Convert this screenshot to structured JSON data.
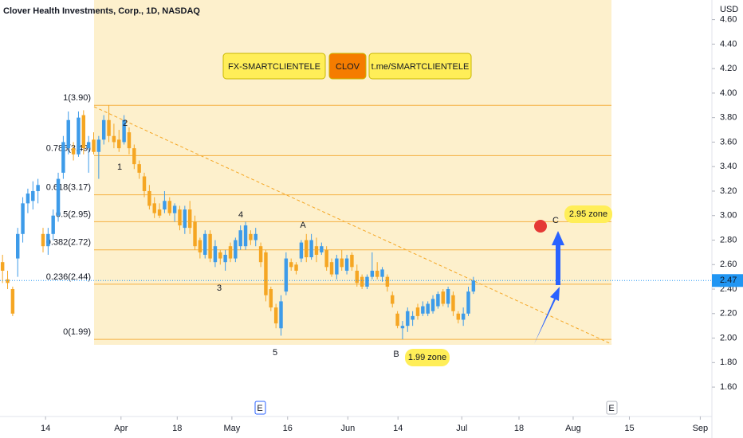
{
  "chart_data": {
    "type": "candlestick",
    "title": "Clover Health Investments, Corp., 1D, NASDAQ",
    "currency": "USD",
    "up_color": "#3d9be9",
    "down_color": "#f5a623",
    "candles": [
      [
        2.62,
        2.68,
        2.45,
        2.55
      ],
      [
        2.48,
        2.55,
        2.4,
        2.45
      ],
      [
        2.4,
        2.42,
        2.18,
        2.2
      ],
      [
        2.65,
        2.9,
        2.5,
        2.85
      ],
      [
        2.85,
        3.15,
        2.78,
        3.1
      ],
      [
        3.1,
        3.22,
        3.02,
        3.18
      ],
      [
        3.12,
        3.28,
        3.05,
        3.2
      ],
      [
        3.2,
        3.3,
        3.1,
        3.25
      ],
      [
        2.85,
        2.9,
        2.7,
        2.75
      ],
      [
        2.75,
        2.9,
        2.68,
        2.85
      ],
      [
        2.85,
        3.05,
        2.8,
        3.0
      ],
      [
        3.0,
        3.35,
        2.95,
        3.3
      ],
      [
        3.35,
        3.65,
        3.3,
        3.6
      ],
      [
        3.55,
        3.85,
        3.5,
        3.78
      ],
      [
        3.55,
        3.6,
        3.45,
        3.5
      ],
      [
        3.5,
        3.85,
        3.48,
        3.8
      ],
      [
        3.82,
        3.86,
        3.5,
        3.55
      ],
      [
        3.55,
        3.65,
        3.35,
        3.6
      ],
      [
        3.62,
        3.68,
        3.5,
        3.52
      ],
      [
        3.52,
        3.65,
        3.3,
        3.62
      ],
      [
        3.62,
        3.82,
        3.58,
        3.78
      ],
      [
        3.78,
        3.9,
        3.6,
        3.65
      ],
      [
        3.65,
        3.75,
        3.55,
        3.6
      ],
      [
        3.62,
        3.7,
        3.52,
        3.55
      ],
      [
        3.6,
        3.82,
        3.58,
        3.78
      ],
      [
        3.68,
        3.72,
        3.5,
        3.55
      ],
      [
        3.55,
        3.58,
        3.38,
        3.42
      ],
      [
        3.42,
        3.45,
        3.3,
        3.35
      ],
      [
        3.32,
        3.35,
        3.15,
        3.2
      ],
      [
        3.2,
        3.25,
        3.05,
        3.08
      ],
      [
        3.1,
        3.15,
        2.98,
        3.02
      ],
      [
        3.05,
        3.1,
        2.98,
        3.0
      ],
      [
        3.05,
        3.2,
        3.02,
        3.12
      ],
      [
        3.12,
        3.15,
        3.0,
        3.02
      ],
      [
        3.02,
        3.1,
        2.95,
        3.08
      ],
      [
        3.05,
        3.08,
        2.88,
        2.92
      ],
      [
        2.9,
        3.08,
        2.85,
        3.05
      ],
      [
        3.05,
        3.12,
        2.85,
        2.9
      ],
      [
        2.95,
        3.0,
        2.72,
        2.75
      ],
      [
        2.8,
        2.82,
        2.65,
        2.7
      ],
      [
        2.68,
        2.88,
        2.65,
        2.85
      ],
      [
        2.85,
        2.88,
        2.62,
        2.65
      ],
      [
        2.62,
        2.8,
        2.58,
        2.75
      ],
      [
        2.7,
        2.72,
        2.6,
        2.65
      ],
      [
        2.62,
        2.72,
        2.55,
        2.68
      ],
      [
        2.75,
        2.78,
        2.62,
        2.65
      ],
      [
        2.65,
        2.82,
        2.62,
        2.8
      ],
      [
        2.75,
        2.92,
        2.72,
        2.88
      ],
      [
        2.75,
        2.95,
        2.72,
        2.92
      ],
      [
        2.85,
        2.88,
        2.76,
        2.8
      ],
      [
        2.8,
        2.9,
        2.75,
        2.85
      ],
      [
        2.75,
        2.78,
        2.58,
        2.62
      ],
      [
        2.7,
        2.72,
        2.3,
        2.35
      ],
      [
        2.4,
        2.42,
        2.22,
        2.25
      ],
      [
        2.25,
        2.28,
        2.08,
        2.12
      ],
      [
        2.08,
        2.35,
        2.02,
        2.3
      ],
      [
        2.38,
        2.7,
        2.35,
        2.65
      ],
      [
        2.62,
        2.65,
        2.55,
        2.58
      ],
      [
        2.6,
        2.62,
        2.52,
        2.55
      ],
      [
        2.65,
        2.8,
        2.62,
        2.78
      ],
      [
        2.8,
        2.85,
        2.62,
        2.66
      ],
      [
        2.66,
        2.85,
        2.64,
        2.8
      ],
      [
        2.75,
        2.82,
        2.62,
        2.68
      ],
      [
        2.7,
        2.78,
        2.68,
        2.75
      ],
      [
        2.72,
        2.75,
        2.55,
        2.58
      ],
      [
        2.62,
        2.65,
        2.5,
        2.52
      ],
      [
        2.52,
        2.68,
        2.48,
        2.65
      ],
      [
        2.65,
        2.72,
        2.55,
        2.58
      ],
      [
        2.55,
        2.68,
        2.52,
        2.65
      ],
      [
        2.68,
        2.7,
        2.55,
        2.58
      ],
      [
        2.55,
        2.6,
        2.42,
        2.45
      ],
      [
        2.5,
        2.52,
        2.4,
        2.42
      ],
      [
        2.42,
        2.52,
        2.4,
        2.5
      ],
      [
        2.5,
        2.7,
        2.48,
        2.55
      ],
      [
        2.55,
        2.62,
        2.48,
        2.5
      ],
      [
        2.5,
        2.58,
        2.46,
        2.56
      ],
      [
        2.5,
        2.52,
        2.38,
        2.42
      ],
      [
        2.35,
        2.38,
        2.25,
        2.28
      ],
      [
        2.2,
        2.22,
        2.08,
        2.1
      ],
      [
        2.08,
        2.14,
        1.99,
        2.1
      ],
      [
        2.1,
        2.25,
        2.05,
        2.22
      ],
      [
        2.15,
        2.22,
        2.1,
        2.18
      ],
      [
        2.25,
        2.28,
        2.15,
        2.18
      ],
      [
        2.2,
        2.3,
        2.18,
        2.26
      ],
      [
        2.2,
        2.3,
        2.18,
        2.28
      ],
      [
        2.22,
        2.35,
        2.2,
        2.32
      ],
      [
        2.26,
        2.38,
        2.24,
        2.36
      ],
      [
        2.38,
        2.4,
        2.26,
        2.28
      ],
      [
        2.28,
        2.42,
        2.25,
        2.4
      ],
      [
        2.35,
        2.38,
        2.18,
        2.22
      ],
      [
        2.2,
        2.22,
        2.12,
        2.15
      ],
      [
        2.15,
        2.25,
        2.1,
        2.2
      ],
      [
        2.2,
        2.42,
        2.18,
        2.38
      ],
      [
        2.38,
        2.5,
        2.36,
        2.47
      ]
    ],
    "xlim": [
      -0.5,
      140.1
    ],
    "xticks": [
      {
        "value": 8.5,
        "label": "14"
      },
      {
        "value": 23.4,
        "label": "Apr"
      },
      {
        "value": 34.5,
        "label": "18"
      },
      {
        "value": 45.3,
        "label": "May"
      },
      {
        "value": 56.3,
        "label": "16"
      },
      {
        "value": 68.2,
        "label": "Jun"
      },
      {
        "value": 78.1,
        "label": "14"
      },
      {
        "value": 90.7,
        "label": "Jul"
      },
      {
        "value": 102,
        "label": "18"
      },
      {
        "value": 112.7,
        "label": "Aug"
      },
      {
        "value": 123.8,
        "label": "15"
      },
      {
        "value": 137.8,
        "label": "Sep"
      }
    ],
    "ylim": [
      1.36,
      4.76
    ],
    "yticks": [
      {
        "value": 1.6,
        "label": "1.60"
      },
      {
        "value": 1.8,
        "label": "1.80"
      },
      {
        "value": 2,
        "label": "2.00"
      },
      {
        "value": 2.2,
        "label": "2.20"
      },
      {
        "value": 2.4,
        "label": "2.40"
      },
      {
        "value": 2.6,
        "label": "2.60"
      },
      {
        "value": 2.8,
        "label": "2.80"
      },
      {
        "value": 3,
        "label": "3.00"
      },
      {
        "value": 3.2,
        "label": "3.20"
      },
      {
        "value": 3.4,
        "label": "3.40"
      },
      {
        "value": 3.6,
        "label": "3.60"
      },
      {
        "value": 3.8,
        "label": "3.80"
      },
      {
        "value": 4,
        "label": "4.00"
      },
      {
        "value": 4.2,
        "label": "4.20"
      },
      {
        "value": 4.4,
        "label": "4.40"
      },
      {
        "value": 4.6,
        "label": "4.60"
      }
    ],
    "last_price": {
      "value": 2.47,
      "label": "2.47"
    },
    "fib_levels": [
      {
        "value": 3.9,
        "label": "1(3.90)"
      },
      {
        "value": 3.49,
        "label": "0.786(3.49)"
      },
      {
        "value": 3.17,
        "label": "0.618(3.17)"
      },
      {
        "value": 2.95,
        "label": "0.5(2.95)"
      },
      {
        "value": 2.72,
        "label": "0.382(2.72)"
      },
      {
        "value": 2.44,
        "label": "0.236(2.44)"
      },
      {
        "value": 1.99,
        "label": "0(1.99)"
      }
    ],
    "badges": [
      "FX-SMARTCLIENTELE",
      "CLOV",
      "t.me/SMARTCLIENTELE"
    ],
    "wave_labels": [
      "1",
      "2",
      "3",
      "4",
      "5",
      "A",
      "B",
      "C"
    ],
    "notes": [
      "2.95 zone",
      "1.99 zone"
    ],
    "events": [
      "E",
      "E"
    ]
  }
}
